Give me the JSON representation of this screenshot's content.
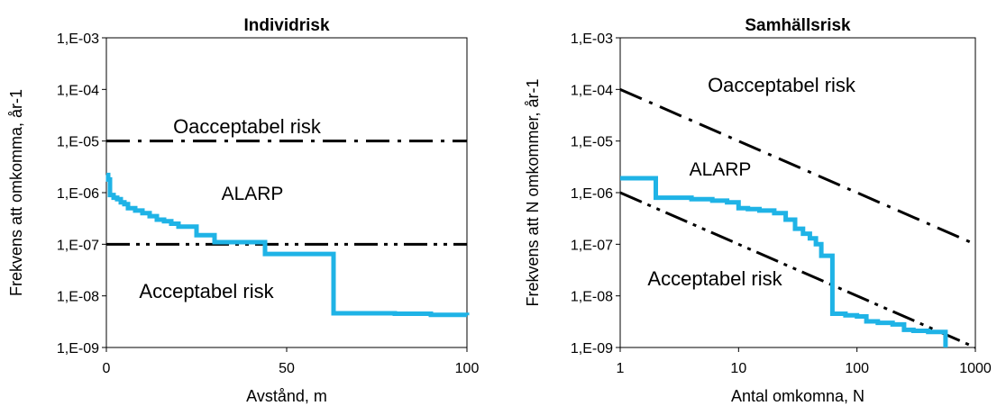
{
  "chart_data": [
    {
      "type": "line",
      "title": "Individrisk",
      "xlabel": "Avstånd, m",
      "ylabel": "Frekvens att omkomma, år-1",
      "xscale": "linear",
      "yscale": "log",
      "xlim": [
        0,
        100
      ],
      "ylim": [
        1e-09,
        0.001
      ],
      "x_ticks": [
        "0",
        "50",
        "100"
      ],
      "y_ticks": [
        "1,E-09",
        "1,E-08",
        "1,E-07",
        "1,E-06",
        "1,E-05",
        "1,E-04",
        "1,E-03"
      ],
      "annotations": [
        "Oacceptabel risk",
        "ALARP",
        "Acceptabel risk"
      ],
      "criteria_lines": [
        {
          "style": "dash-dot",
          "color": "#000000",
          "x": [
            0,
            100
          ],
          "y": [
            1e-05,
            1e-05
          ]
        },
        {
          "style": "dash-dot-dot",
          "color": "#000000",
          "x": [
            0,
            100
          ],
          "y": [
            1e-07,
            1e-07
          ]
        }
      ],
      "series": [
        {
          "color": "#1fb3e6",
          "x": [
            0,
            0.5,
            1,
            2,
            3,
            4,
            5,
            6,
            7,
            8,
            9,
            10,
            11,
            12,
            13,
            14,
            15,
            16,
            18,
            20,
            22,
            25,
            30,
            35,
            40,
            44,
            50,
            55,
            60,
            63,
            63,
            70,
            80,
            90,
            100
          ],
          "y": [
            2.2e-06,
            1.8e-06,
            9e-07,
            8e-07,
            7.5e-07,
            6.5e-07,
            6e-07,
            5e-07,
            5e-07,
            4.5e-07,
            4.5e-07,
            4e-07,
            4e-07,
            3.5e-07,
            3.5e-07,
            3e-07,
            3e-07,
            2.8e-07,
            2.5e-07,
            2.2e-07,
            2.2e-07,
            1.5e-07,
            1.1e-07,
            1.1e-07,
            1.1e-07,
            6.5e-08,
            6.5e-08,
            6.5e-08,
            6.5e-08,
            6.5e-08,
            4.6e-09,
            4.6e-09,
            4.5e-09,
            4.3e-09,
            4.2e-09
          ]
        }
      ]
    },
    {
      "type": "line",
      "title": "Samhällsrisk",
      "xlabel": "Antal omkomna, N",
      "ylabel": "Frekvens att N omkommer, år-1",
      "xscale": "log",
      "yscale": "log",
      "xlim": [
        1,
        1000
      ],
      "ylim": [
        1e-09,
        0.001
      ],
      "x_ticks": [
        "1",
        "10",
        "100",
        "1000"
      ],
      "y_ticks": [
        "1,E-09",
        "1,E-08",
        "1,E-07",
        "1,E-06",
        "1,E-05",
        "1,E-04",
        "1,E-03"
      ],
      "annotations": [
        "Oacceptabel risk",
        "ALARP",
        "Acceptabel risk"
      ],
      "criteria_lines": [
        {
          "style": "dash-dot",
          "color": "#000000",
          "x": [
            1,
            1000
          ],
          "y": [
            0.0001,
            1e-07
          ]
        },
        {
          "style": "dash-dot-dot",
          "color": "#000000",
          "x": [
            1,
            1000
          ],
          "y": [
            1e-06,
            1e-09
          ]
        }
      ],
      "series": [
        {
          "color": "#1fb3e6",
          "x": [
            1,
            2,
            2,
            3,
            4,
            5,
            6,
            8,
            10,
            12,
            15,
            20,
            25,
            30,
            35,
            40,
            45,
            50,
            60,
            62,
            62,
            70,
            80,
            100,
            120,
            150,
            200,
            250,
            300,
            400,
            500,
            550,
            560
          ],
          "y": [
            1.9e-06,
            1.9e-06,
            8e-07,
            8e-07,
            7.5e-07,
            7.5e-07,
            7e-07,
            6.5e-07,
            5e-07,
            4.8e-07,
            4.5e-07,
            4e-07,
            3e-07,
            2e-07,
            1.6e-07,
            1.3e-07,
            1e-07,
            6e-08,
            6e-08,
            6e-08,
            4.5e-09,
            4.5e-09,
            4.2e-09,
            4e-09,
            3.2e-09,
            3e-09,
            2.8e-09,
            2.2e-09,
            2.1e-09,
            2e-09,
            2e-09,
            2e-09,
            1e-09
          ]
        }
      ]
    }
  ]
}
